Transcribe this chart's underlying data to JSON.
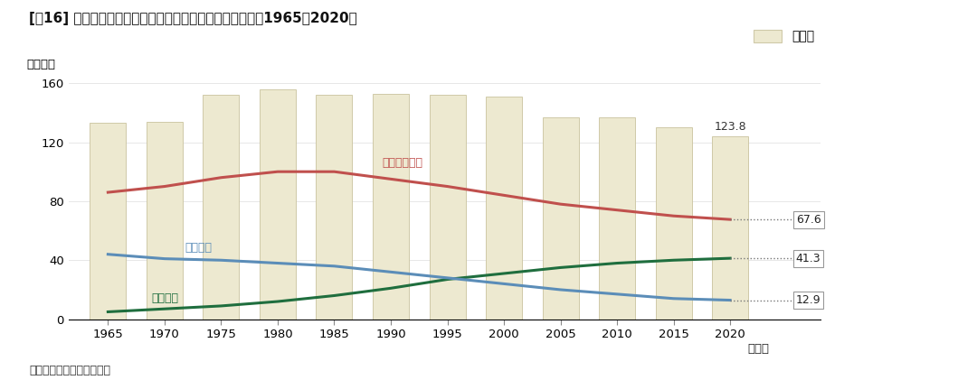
{
  "title": "[図16] 青森県の総人口の推移・年齢別三区分人口の推計：1965〜2020年",
  "ylabel": "（万人）",
  "xlabel_suffix": "（年）",
  "source": "資料：総務省「国勢調査」",
  "years": [
    1965,
    1970,
    1975,
    1980,
    1985,
    1990,
    1995,
    2000,
    2005,
    2010,
    2015,
    2020
  ],
  "bar_values": [
    133,
    134,
    152,
    156,
    152,
    153,
    152,
    151,
    137,
    137,
    130,
    123.8
  ],
  "bar_color": "#ede9d0",
  "bar_edgecolor": "#cfc9a8",
  "line_seisan": [
    86,
    90,
    96,
    100,
    100,
    95,
    90,
    84,
    78,
    74,
    70,
    67.6
  ],
  "line_nencho": [
    5,
    7,
    9,
    12,
    16,
    21,
    27,
    31,
    35,
    38,
    40,
    41.3
  ],
  "line_nensh": [
    44,
    41,
    40,
    38,
    36,
    32,
    28,
    24,
    20,
    17,
    14,
    12.9
  ],
  "color_seisan": "#c0504d",
  "color_nencho": "#1f6e3e",
  "color_nensh": "#5b8db8",
  "label_seisan": "生産年齢人口",
  "label_nencho": "老年人口",
  "label_nensh": "年少人口",
  "label_soujinko": "総人口",
  "end_label_seisan": "67.6",
  "end_label_nencho": "41.3",
  "end_label_nensh": "12.9",
  "bar_label_2020": "123.8",
  "ylim": [
    0,
    170
  ],
  "yticks": [
    0,
    40,
    80,
    120,
    160
  ],
  "background_color": "#ffffff"
}
